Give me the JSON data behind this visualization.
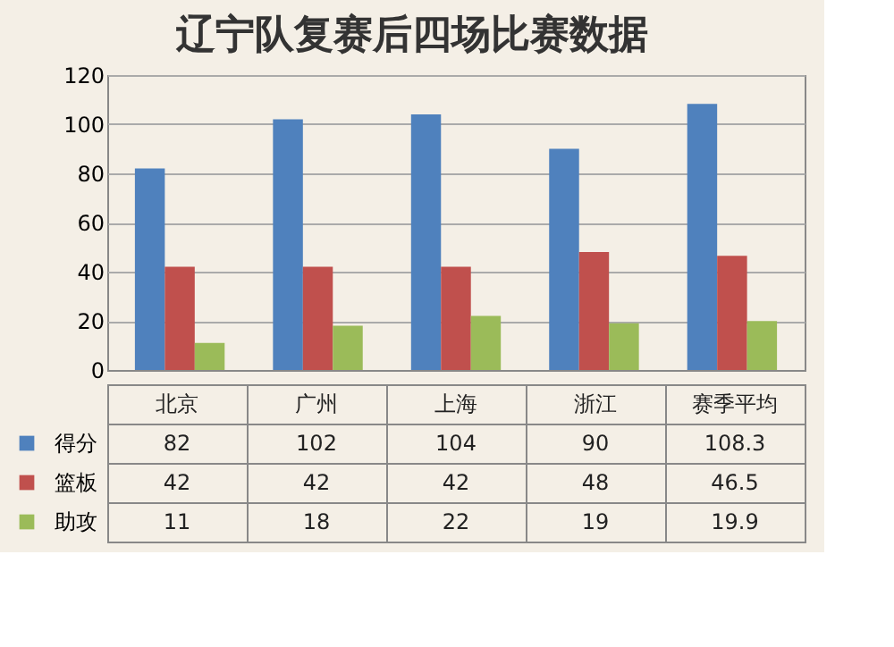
{
  "chart_data": {
    "type": "bar",
    "title": "辽宁队复赛后四场比赛数据",
    "categories": [
      "北京",
      "广州",
      "上海",
      "浙江",
      "赛季平均"
    ],
    "series": [
      {
        "name": "得分",
        "color": "#4f81bd",
        "values": [
          82,
          102,
          104,
          90,
          108.3
        ]
      },
      {
        "name": "篮板",
        "color": "#c0504d",
        "values": [
          42,
          42,
          42,
          48,
          46.5
        ]
      },
      {
        "name": "助攻",
        "color": "#9bbb59",
        "values": [
          11,
          18,
          22,
          19,
          19.9
        ]
      }
    ],
    "ylim": [
      0,
      120
    ],
    "yticks": [
      0,
      20,
      40,
      60,
      80,
      100,
      120
    ],
    "grid": "y",
    "legend": "bottom left",
    "data_labels": true
  }
}
